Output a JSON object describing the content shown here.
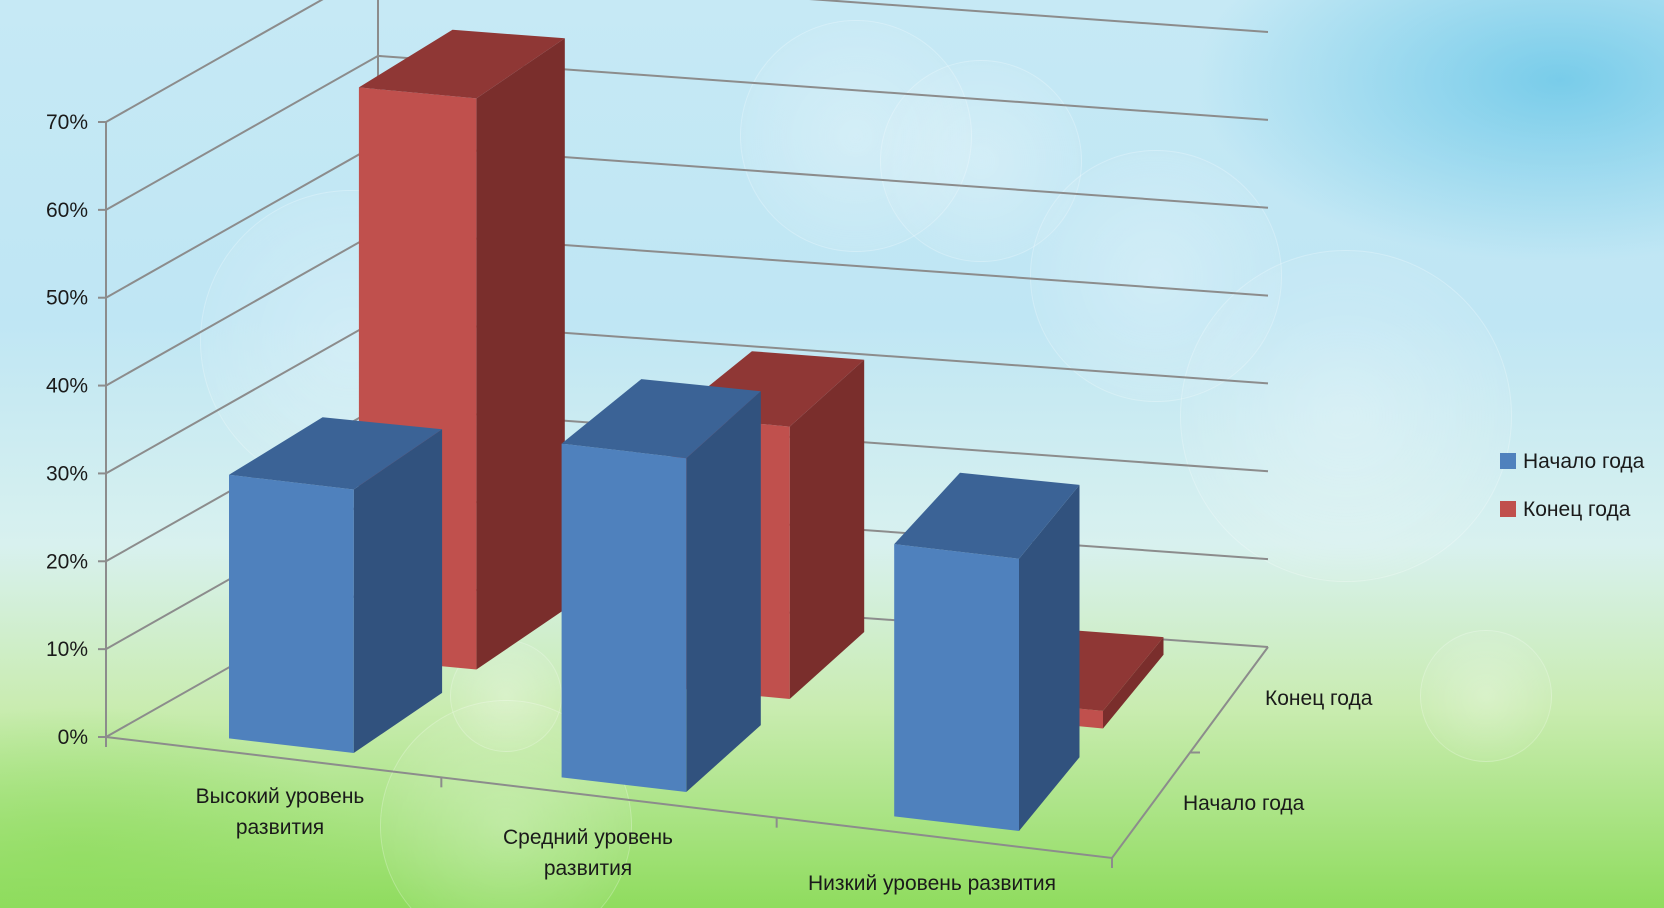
{
  "chart_data": {
    "type": "bar",
    "categories": [
      "Высокий уровень развития",
      "Средний уровень развития",
      "Низкий уровень развития"
    ],
    "series": [
      {
        "name": "Начало года",
        "values": [
          30,
          38,
          31
        ],
        "color": "#4f81bd",
        "top_color": "#3b6396",
        "side_color": "#31527e"
      },
      {
        "name": "Конец года",
        "values": [
          65,
          31,
          2
        ],
        "color": "#c0504d",
        "top_color": "#8f3735",
        "side_color": "#7a2e2c"
      }
    ],
    "y_axis": {
      "min": 0,
      "max": 70,
      "step": 10,
      "tick_labels": [
        "0%",
        "10%",
        "20%",
        "30%",
        "40%",
        "50%",
        "60%",
        "70%"
      ]
    },
    "depth_axis_labels": [
      "Начало года",
      "Конец года"
    ],
    "legend": [
      "Начало года",
      "Конец года"
    ],
    "legend_position": "right",
    "grid": true,
    "style": "3d-column"
  }
}
